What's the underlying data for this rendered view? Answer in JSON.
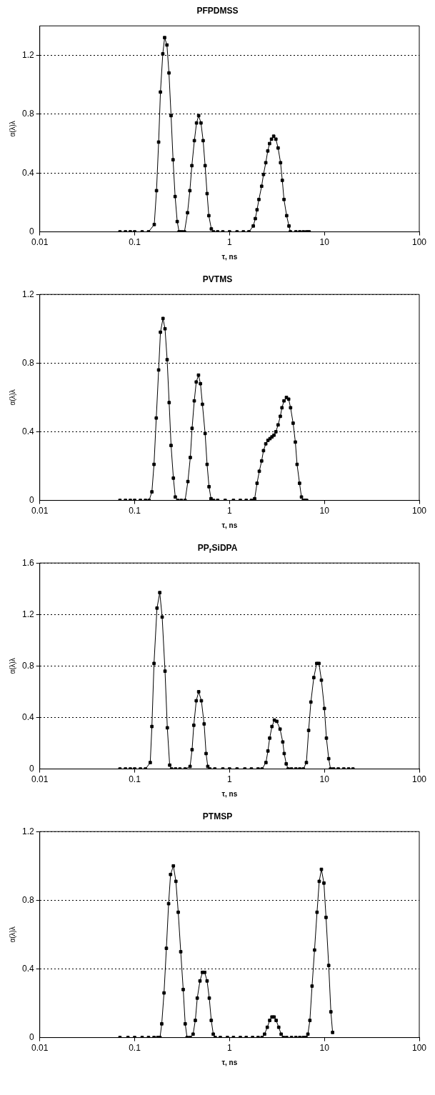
{
  "chart_data": [
    {
      "type": "line",
      "title": "PFPDMSS",
      "xlabel": "τ, ns",
      "ylabel": "α(λ)λ",
      "log": "x",
      "xlim": [
        0.01,
        100
      ],
      "xticks": [
        0.01,
        0.1,
        1,
        10,
        100
      ],
      "ylim": [
        0,
        1.4
      ],
      "yticks": [
        0,
        0.4,
        0.8,
        1.2
      ],
      "grid": "y",
      "marker": "square",
      "color": "#000000",
      "x": [
        0.07,
        0.08,
        0.09,
        0.1,
        0.12,
        0.14,
        0.161,
        0.17,
        0.179,
        0.187,
        0.198,
        0.207,
        0.219,
        0.23,
        0.242,
        0.254,
        0.267,
        0.281,
        0.294,
        0.312,
        0.335,
        0.361,
        0.382,
        0.401,
        0.426,
        0.449,
        0.473,
        0.5,
        0.527,
        0.553,
        0.58,
        0.605,
        0.643,
        0.678,
        0.75,
        0.85,
        1,
        1.2,
        1.4,
        1.6,
        1.78,
        1.87,
        1.95,
        2.04,
        2.18,
        2.28,
        2.41,
        2.53,
        2.64,
        2.77,
        2.92,
        3.08,
        3.25,
        3.45,
        3.6,
        3.75,
        4,
        4.23,
        4.38,
        5,
        5.5,
        6,
        6.5,
        6.9
      ],
      "values": [
        0,
        0,
        0,
        0,
        0,
        0,
        0.05,
        0.28,
        0.61,
        0.95,
        1.21,
        1.32,
        1.27,
        1.08,
        0.79,
        0.49,
        0.24,
        0.07,
        0,
        0,
        0,
        0.13,
        0.28,
        0.45,
        0.62,
        0.74,
        0.79,
        0.74,
        0.62,
        0.45,
        0.26,
        0.11,
        0.02,
        0,
        0,
        0,
        0,
        0,
        0,
        0,
        0.04,
        0.09,
        0.15,
        0.22,
        0.31,
        0.39,
        0.47,
        0.55,
        0.6,
        0.63,
        0.65,
        0.63,
        0.57,
        0.47,
        0.35,
        0.22,
        0.11,
        0.04,
        0,
        0,
        0,
        0,
        0,
        0
      ]
    },
    {
      "type": "line",
      "title": "PVTMS",
      "xlabel": "τ, ns",
      "ylabel": "α(λ)λ",
      "log": "x",
      "xlim": [
        0.01,
        100
      ],
      "xticks": [
        0.01,
        0.1,
        1,
        10,
        100
      ],
      "ylim": [
        0,
        1.2
      ],
      "yticks": [
        0,
        0.4,
        0.8,
        1.2
      ],
      "grid": "y",
      "marker": "square",
      "color": "#000000",
      "x": [
        0.07,
        0.08,
        0.09,
        0.1,
        0.115,
        0.13,
        0.142,
        0.152,
        0.16,
        0.169,
        0.179,
        0.187,
        0.199,
        0.209,
        0.22,
        0.231,
        0.242,
        0.256,
        0.268,
        0.285,
        0.31,
        0.34,
        0.364,
        0.386,
        0.403,
        0.425,
        0.446,
        0.471,
        0.494,
        0.518,
        0.553,
        0.58,
        0.608,
        0.638,
        0.678,
        0.75,
        0.9,
        1.1,
        1.3,
        1.5,
        1.7,
        1.84,
        1.95,
        2.06,
        2.18,
        2.28,
        2.41,
        2.54,
        2.67,
        2.8,
        2.94,
        3.08,
        3.25,
        3.43,
        3.57,
        3.75,
        3.98,
        4.2,
        4.4,
        4.68,
        4.94,
        5.15,
        5.47,
        5.73,
        6,
        6.3,
        6.5
      ],
      "values": [
        0,
        0,
        0,
        0,
        0,
        0,
        0,
        0.05,
        0.21,
        0.48,
        0.76,
        0.98,
        1.06,
        1.0,
        0.82,
        0.57,
        0.32,
        0.13,
        0.02,
        0,
        0,
        0,
        0.11,
        0.25,
        0.42,
        0.58,
        0.69,
        0.73,
        0.68,
        0.56,
        0.39,
        0.21,
        0.08,
        0.01,
        0,
        0,
        0,
        0,
        0,
        0,
        0,
        0.01,
        0.1,
        0.17,
        0.23,
        0.29,
        0.33,
        0.35,
        0.36,
        0.37,
        0.38,
        0.4,
        0.44,
        0.49,
        0.54,
        0.58,
        0.6,
        0.59,
        0.54,
        0.45,
        0.34,
        0.21,
        0.1,
        0.02,
        0,
        0,
        0
      ]
    },
    {
      "type": "line",
      "title": "PP$_{r}$SiDPA",
      "xlabel": "τ, ns",
      "ylabel": "α(λ)λ",
      "log": "x",
      "xlim": [
        0.01,
        100
      ],
      "xticks": [
        0.01,
        0.1,
        1,
        10,
        100
      ],
      "ylim": [
        0,
        1.6
      ],
      "yticks": [
        0,
        0.4,
        0.8,
        1.2,
        1.6
      ],
      "grid": "y",
      "marker": "square",
      "color": "#000000",
      "x": [
        0.07,
        0.08,
        0.09,
        0.1,
        0.115,
        0.13,
        0.146,
        0.152,
        0.16,
        0.172,
        0.184,
        0.195,
        0.209,
        0.221,
        0.234,
        0.245,
        0.27,
        0.3,
        0.34,
        0.384,
        0.403,
        0.42,
        0.446,
        0.473,
        0.505,
        0.54,
        0.566,
        0.59,
        0.62,
        0.7,
        0.85,
        1,
        1.2,
        1.45,
        1.7,
        2,
        2.2,
        2.42,
        2.54,
        2.65,
        2.8,
        2.97,
        3.15,
        3.41,
        3.64,
        3.77,
        3.96,
        4.15,
        4.5,
        5,
        5.5,
        6,
        6.46,
        6.82,
        7.2,
        7.73,
        8.3,
        8.76,
        9.3,
        10,
        10.5,
        11.1,
        11.6,
        12.5,
        14,
        16,
        18,
        20
      ],
      "values": [
        0,
        0,
        0,
        0,
        0,
        0,
        0.05,
        0.33,
        0.82,
        1.25,
        1.37,
        1.18,
        0.76,
        0.32,
        0.03,
        0,
        0,
        0,
        0,
        0.02,
        0.15,
        0.34,
        0.53,
        0.6,
        0.53,
        0.35,
        0.12,
        0.02,
        0,
        0,
        0,
        0,
        0,
        0,
        0,
        0,
        0,
        0.05,
        0.14,
        0.24,
        0.33,
        0.38,
        0.37,
        0.31,
        0.21,
        0.12,
        0.04,
        0,
        0,
        0,
        0,
        0,
        0.05,
        0.3,
        0.52,
        0.71,
        0.82,
        0.82,
        0.69,
        0.47,
        0.24,
        0.08,
        0,
        0,
        0,
        0,
        0,
        0
      ]
    },
    {
      "type": "line",
      "title": "PTMSP",
      "xlabel": "τ, ns",
      "ylabel": "α(λ)λ",
      "log": "x",
      "xlim": [
        0.01,
        100
      ],
      "xticks": [
        0.01,
        0.1,
        1,
        10,
        100
      ],
      "ylim": [
        0,
        1.2
      ],
      "yticks": [
        0,
        0.4,
        0.8,
        1.2
      ],
      "grid": "y",
      "marker": "square",
      "color": "#000000",
      "x": [
        0.07,
        0.085,
        0.1,
        0.12,
        0.14,
        0.16,
        0.175,
        0.185,
        0.193,
        0.204,
        0.216,
        0.228,
        0.239,
        0.256,
        0.272,
        0.288,
        0.306,
        0.325,
        0.341,
        0.357,
        0.385,
        0.413,
        0.436,
        0.457,
        0.488,
        0.518,
        0.547,
        0.58,
        0.612,
        0.642,
        0.674,
        0.707,
        0.8,
        0.95,
        1.1,
        1.3,
        1.5,
        1.75,
        2,
        2.2,
        2.34,
        2.5,
        2.65,
        2.8,
        2.95,
        3.1,
        3.3,
        3.5,
        3.7,
        4,
        4.5,
        5,
        5.5,
        6,
        6.4,
        6.7,
        7.03,
        7.41,
        7.87,
        8.36,
        8.82,
        9.3,
        9.88,
        10.4,
        11.1,
        11.7,
        12.2
      ],
      "values": [
        0,
        0,
        0,
        0,
        0,
        0,
        0,
        0,
        0.08,
        0.26,
        0.52,
        0.78,
        0.95,
        1.0,
        0.91,
        0.73,
        0.5,
        0.28,
        0.08,
        0,
        0,
        0.02,
        0.1,
        0.23,
        0.33,
        0.38,
        0.38,
        0.33,
        0.23,
        0.1,
        0.02,
        0,
        0,
        0,
        0,
        0,
        0,
        0,
        0,
        0,
        0.02,
        0.06,
        0.1,
        0.12,
        0.12,
        0.1,
        0.06,
        0.02,
        0,
        0,
        0,
        0,
        0,
        0,
        0,
        0.02,
        0.1,
        0.3,
        0.51,
        0.73,
        0.91,
        0.98,
        0.9,
        0.7,
        0.42,
        0.15,
        0.03
      ]
    }
  ]
}
